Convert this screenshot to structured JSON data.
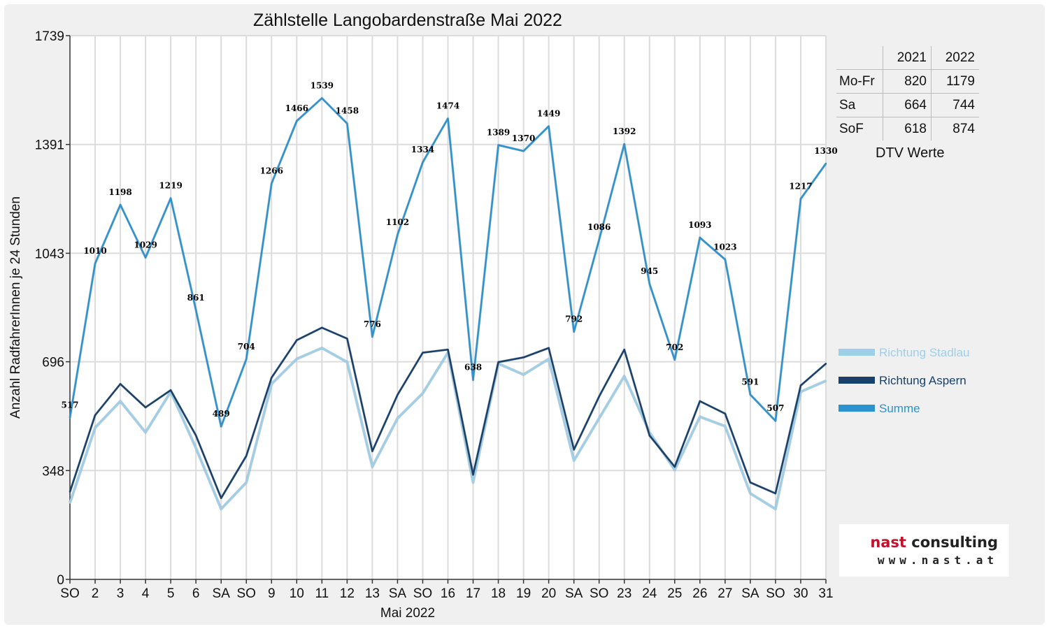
{
  "chart_data": {
    "type": "line",
    "title": "Zählstelle Langobardenstraße Mai 2022",
    "xlabel": "Mai 2022",
    "ylabel": "Anzahl RadfahrerInnen je 24 Stunden",
    "ylim": [
      0,
      1739
    ],
    "yticks": [
      "0",
      "348",
      "696",
      "1043",
      "1391",
      "1739"
    ],
    "categories": [
      "SO",
      "2",
      "3",
      "4",
      "5",
      "6",
      "SA",
      "SO",
      "9",
      "10",
      "11",
      "12",
      "13",
      "SA",
      "SO",
      "16",
      "17",
      "18",
      "19",
      "20",
      "SA",
      "SO",
      "23",
      "24",
      "25",
      "26",
      "27",
      "SA",
      "SO",
      "30",
      "31"
    ],
    "red_categories": [
      0,
      7,
      14,
      21,
      25,
      28
    ],
    "grid": true,
    "legend_position": "right",
    "series": [
      {
        "name": "Richtung Stadlau",
        "color": "#9dcfe8",
        "values": [
          245,
          485,
          570,
          470,
          600,
          420,
          225,
          310,
          625,
          705,
          740,
          695,
          360,
          515,
          595,
          725,
          310,
          690,
          655,
          705,
          380,
          515,
          650,
          470,
          350,
          520,
          490,
          275,
          225,
          600,
          635
        ]
      },
      {
        "name": "Richtung Aspern",
        "color": "#17406a",
        "values": [
          280,
          525,
          625,
          550,
          605,
          460,
          260,
          395,
          645,
          765,
          805,
          770,
          410,
          590,
          725,
          735,
          335,
          695,
          710,
          740,
          415,
          585,
          735,
          460,
          360,
          570,
          530,
          310,
          275,
          620,
          690
        ]
      },
      {
        "name": "Summe",
        "color": "#2b93cf",
        "values": [
          517,
          1010,
          1198,
          1029,
          1219,
          861,
          489,
          704,
          1266,
          1466,
          1539,
          1458,
          776,
          1102,
          1334,
          1474,
          638,
          1389,
          1370,
          1449,
          792,
          1086,
          1392,
          945,
          702,
          1093,
          1023,
          591,
          507,
          1217,
          1330
        ]
      }
    ],
    "data_labels": [
      "517",
      "1010",
      "1198",
      "1029",
      "1219",
      "861",
      "489",
      "704",
      "1266",
      "1466",
      "1539",
      "1458",
      "776",
      "1102",
      "1334",
      "1474",
      "638",
      "1389",
      "1370",
      "1449",
      "792",
      "1086",
      "1392",
      "945",
      "702",
      "1093",
      "1023",
      "591",
      "507",
      "1217",
      "1330"
    ]
  },
  "dtv_table": {
    "headers": [
      "2021",
      "2022"
    ],
    "rows": [
      {
        "label": "Mo-Fr",
        "v2021": "820",
        "v2022": "1179"
      },
      {
        "label": "Sa",
        "v2021": "664",
        "v2022": "744"
      },
      {
        "label": "SoF",
        "v2021": "618",
        "v2022": "874"
      }
    ],
    "caption": "DTV Werte"
  },
  "logo": {
    "brand_part1": "nast",
    "brand_part2": "consulting",
    "url": "www.nast.at"
  }
}
